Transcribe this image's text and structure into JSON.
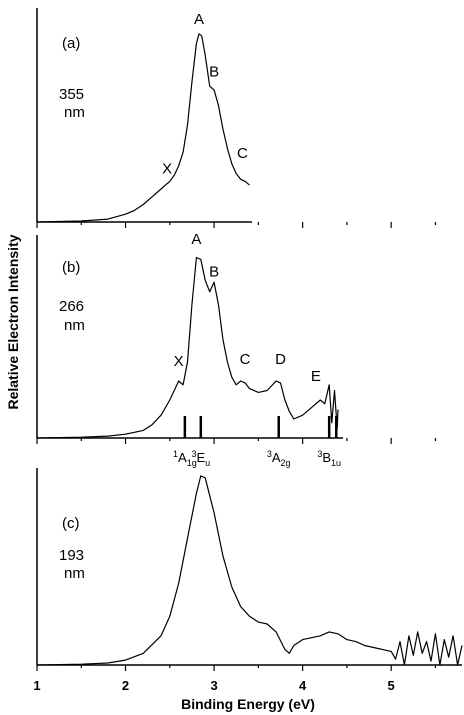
{
  "chart_data": {
    "type": "line",
    "xlabel": "Binding Energy (eV)",
    "ylabel": "Relative Electron Intensity",
    "xlim": [
      1,
      5.8
    ],
    "x_ticks": [
      "1",
      "2",
      "3",
      "4",
      "5"
    ],
    "panels": [
      {
        "label": "(a)",
        "wavelength": "355",
        "unit": "nm",
        "xmax": 3.4,
        "peaks": [
          {
            "name": "X",
            "x": 2.47,
            "y": 0.25
          },
          {
            "name": "A",
            "x": 2.83,
            "y": 1.02
          },
          {
            "name": "B",
            "x": 3.0,
            "y": 0.75
          },
          {
            "name": "C",
            "x": 3.32,
            "y": 0.33
          }
        ],
        "series": [
          {
            "values": [
              [
                1.0,
                0.0
              ],
              [
                1.5,
                0.005
              ],
              [
                1.8,
                0.015
              ],
              [
                2.0,
                0.04
              ],
              [
                2.1,
                0.06
              ],
              [
                2.2,
                0.09
              ],
              [
                2.3,
                0.13
              ],
              [
                2.4,
                0.17
              ],
              [
                2.5,
                0.21
              ],
              [
                2.55,
                0.24
              ],
              [
                2.6,
                0.29
              ],
              [
                2.65,
                0.36
              ],
              [
                2.7,
                0.5
              ],
              [
                2.75,
                0.72
              ],
              [
                2.8,
                0.92
              ],
              [
                2.83,
                0.97
              ],
              [
                2.86,
                0.96
              ],
              [
                2.9,
                0.86
              ],
              [
                2.95,
                0.7
              ],
              [
                3.0,
                0.68
              ],
              [
                3.05,
                0.6
              ],
              [
                3.1,
                0.48
              ],
              [
                3.15,
                0.38
              ],
              [
                3.2,
                0.3
              ],
              [
                3.25,
                0.25
              ],
              [
                3.3,
                0.22
              ],
              [
                3.35,
                0.21
              ],
              [
                3.4,
                0.19
              ]
            ]
          }
        ]
      },
      {
        "label": "(b)",
        "wavelength": "266",
        "unit": "nm",
        "xmax": 4.4,
        "peaks": [
          {
            "name": "X",
            "x": 2.6,
            "y": 0.38
          },
          {
            "name": "A",
            "x": 2.8,
            "y": 1.02
          },
          {
            "name": "B",
            "x": 3.0,
            "y": 0.85
          },
          {
            "name": "C",
            "x": 3.35,
            "y": 0.39
          },
          {
            "name": "D",
            "x": 3.75,
            "y": 0.39
          },
          {
            "name": "E",
            "x": 4.15,
            "y": 0.3
          }
        ],
        "series": [
          {
            "values": [
              [
                1.0,
                0.0
              ],
              [
                1.5,
                0.004
              ],
              [
                1.8,
                0.01
              ],
              [
                2.0,
                0.02
              ],
              [
                2.2,
                0.04
              ],
              [
                2.3,
                0.07
              ],
              [
                2.4,
                0.12
              ],
              [
                2.5,
                0.2
              ],
              [
                2.6,
                0.3
              ],
              [
                2.65,
                0.28
              ],
              [
                2.7,
                0.4
              ],
              [
                2.75,
                0.7
              ],
              [
                2.8,
                0.95
              ],
              [
                2.85,
                0.94
              ],
              [
                2.9,
                0.83
              ],
              [
                2.95,
                0.77
              ],
              [
                3.0,
                0.82
              ],
              [
                3.05,
                0.7
              ],
              [
                3.1,
                0.52
              ],
              [
                3.15,
                0.4
              ],
              [
                3.2,
                0.32
              ],
              [
                3.25,
                0.28
              ],
              [
                3.3,
                0.3
              ],
              [
                3.35,
                0.29
              ],
              [
                3.4,
                0.26
              ],
              [
                3.5,
                0.24
              ],
              [
                3.6,
                0.25
              ],
              [
                3.7,
                0.3
              ],
              [
                3.75,
                0.29
              ],
              [
                3.8,
                0.2
              ],
              [
                3.85,
                0.14
              ],
              [
                3.9,
                0.1
              ],
              [
                4.0,
                0.12
              ],
              [
                4.1,
                0.16
              ],
              [
                4.2,
                0.2
              ],
              [
                4.25,
                0.18
              ],
              [
                4.3,
                0.28
              ],
              [
                4.33,
                0.08
              ],
              [
                4.36,
                0.25
              ],
              [
                4.39,
                0.05
              ],
              [
                4.4,
                0.15
              ]
            ]
          }
        ],
        "state_labels": [
          {
            "x": 2.67,
            "base": "A",
            "sup": "1",
            "sub": "1g"
          },
          {
            "x": 2.85,
            "base": "E",
            "sup": "3",
            "sub": "u"
          },
          {
            "x": 3.73,
            "base": "A",
            "sup": "3",
            "sub": "2g"
          },
          {
            "x": 4.3,
            "base": "B",
            "sup": "3",
            "sub": "1u"
          }
        ],
        "stick_positions": [
          2.67,
          2.85,
          3.73,
          4.3,
          4.38
        ]
      },
      {
        "label": "(c)",
        "wavelength": "193",
        "unit": "nm",
        "xmax": 5.8,
        "series": [
          {
            "values": [
              [
                1.0,
                0.0
              ],
              [
                1.5,
                0.004
              ],
              [
                1.8,
                0.01
              ],
              [
                2.0,
                0.025
              ],
              [
                2.2,
                0.06
              ],
              [
                2.4,
                0.15
              ],
              [
                2.5,
                0.25
              ],
              [
                2.6,
                0.42
              ],
              [
                2.7,
                0.65
              ],
              [
                2.8,
                0.88
              ],
              [
                2.85,
                0.97
              ],
              [
                2.9,
                0.96
              ],
              [
                3.0,
                0.78
              ],
              [
                3.1,
                0.56
              ],
              [
                3.2,
                0.4
              ],
              [
                3.3,
                0.3
              ],
              [
                3.4,
                0.25
              ],
              [
                3.5,
                0.22
              ],
              [
                3.6,
                0.21
              ],
              [
                3.7,
                0.17
              ],
              [
                3.8,
                0.08
              ],
              [
                3.85,
                0.06
              ],
              [
                3.9,
                0.1
              ],
              [
                4.0,
                0.13
              ],
              [
                4.1,
                0.14
              ],
              [
                4.2,
                0.15
              ],
              [
                4.3,
                0.17
              ],
              [
                4.4,
                0.16
              ],
              [
                4.5,
                0.13
              ],
              [
                4.6,
                0.12
              ],
              [
                4.7,
                0.1
              ],
              [
                4.8,
                0.09
              ],
              [
                4.9,
                0.08
              ],
              [
                5.0,
                0.07
              ],
              [
                5.05,
                0.03
              ],
              [
                5.1,
                0.12
              ],
              [
                5.15,
                0.0
              ],
              [
                5.2,
                0.15
              ],
              [
                5.25,
                0.05
              ],
              [
                5.3,
                0.17
              ],
              [
                5.35,
                0.06
              ],
              [
                5.4,
                0.12
              ],
              [
                5.45,
                0.02
              ],
              [
                5.5,
                0.16
              ],
              [
                5.55,
                0.0
              ],
              [
                5.6,
                0.13
              ],
              [
                5.65,
                0.04
              ],
              [
                5.7,
                0.15
              ],
              [
                5.75,
                0.0
              ],
              [
                5.8,
                0.1
              ]
            ]
          }
        ]
      }
    ]
  }
}
